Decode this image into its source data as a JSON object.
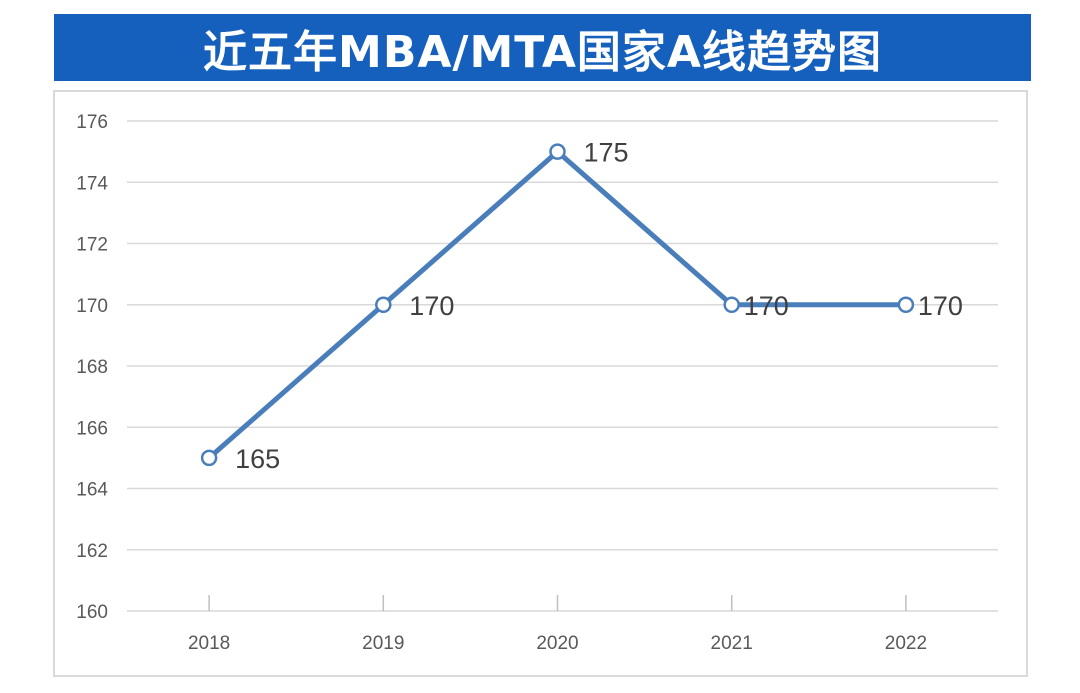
{
  "chart_data": {
    "type": "line",
    "title": "近五年MBA/MTA国家A线趋势图",
    "categories": [
      "2018",
      "2019",
      "2020",
      "2021",
      "2022"
    ],
    "series": [
      {
        "name": "国家A线",
        "values": [
          165,
          170,
          175,
          170,
          170
        ],
        "color": "#4a7ebb"
      }
    ],
    "data_labels": [
      "165",
      "170",
      "175",
      "170",
      "170"
    ],
    "yticks": [
      "160",
      "162",
      "164",
      "166",
      "168",
      "170",
      "172",
      "174",
      "176"
    ],
    "ylim": [
      160,
      176
    ],
    "xlabel": "",
    "ylabel": "",
    "grid": true,
    "legend": "none",
    "title_bg_color": "#1560bd"
  }
}
